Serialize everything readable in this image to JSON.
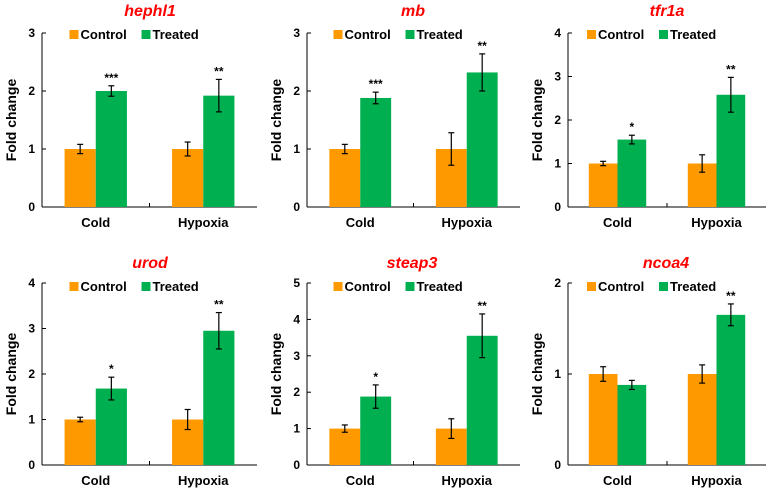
{
  "colors": {
    "control": "#ff9900",
    "treated": "#00b050",
    "title": "#ff0000",
    "axis": "#000000"
  },
  "chart_data": [
    {
      "type": "bar",
      "title": "hephl1",
      "ylabel": "Fold change",
      "ylim": [
        0,
        3
      ],
      "yticks": [
        "0",
        "1",
        "2",
        "3"
      ],
      "categories": [
        "Cold",
        "Hypoxia"
      ],
      "legend": "top",
      "series": [
        {
          "name": "Control",
          "values": [
            1.0,
            1.0
          ],
          "errors": [
            0.08,
            0.12
          ]
        },
        {
          "name": "Treated",
          "values": [
            2.0,
            1.92
          ],
          "errors": [
            0.09,
            0.28
          ]
        }
      ],
      "annotations": [
        "***",
        "**"
      ]
    },
    {
      "type": "bar",
      "title": "mb",
      "ylabel": "Fold change",
      "ylim": [
        0,
        3
      ],
      "yticks": [
        "0",
        "1",
        "2",
        "3"
      ],
      "categories": [
        "Cold",
        "Hypoxia"
      ],
      "legend": "top",
      "series": [
        {
          "name": "Control",
          "values": [
            1.0,
            1.0
          ],
          "errors": [
            0.08,
            0.28
          ]
        },
        {
          "name": "Treated",
          "values": [
            1.88,
            2.32
          ],
          "errors": [
            0.1,
            0.32
          ]
        }
      ],
      "annotations": [
        "***",
        "**"
      ]
    },
    {
      "type": "bar",
      "title": "tfr1a",
      "ylabel": "Fold change",
      "ylim": [
        0,
        4
      ],
      "yticks": [
        "0",
        "1",
        "2",
        "3",
        "4"
      ],
      "categories": [
        "Cold",
        "Hypoxia"
      ],
      "legend": "top",
      "series": [
        {
          "name": "Control",
          "values": [
            1.0,
            1.0
          ],
          "errors": [
            0.05,
            0.2
          ]
        },
        {
          "name": "Treated",
          "values": [
            1.55,
            2.58
          ],
          "errors": [
            0.1,
            0.4
          ]
        }
      ],
      "annotations": [
        "*",
        "**"
      ]
    },
    {
      "type": "bar",
      "title": "urod",
      "ylabel": "Fold change",
      "ylim": [
        0,
        4
      ],
      "yticks": [
        "0",
        "1",
        "2",
        "3",
        "4"
      ],
      "categories": [
        "Cold",
        "Hypoxia"
      ],
      "legend": "top",
      "series": [
        {
          "name": "Control",
          "values": [
            1.0,
            1.0
          ],
          "errors": [
            0.05,
            0.22
          ]
        },
        {
          "name": "Treated",
          "values": [
            1.68,
            2.95
          ],
          "errors": [
            0.25,
            0.4
          ]
        }
      ],
      "annotations": [
        "*",
        "**"
      ]
    },
    {
      "type": "bar",
      "title": "steap3",
      "ylabel": "Fold change",
      "ylim": [
        0,
        5
      ],
      "yticks": [
        "0",
        "1",
        "2",
        "3",
        "4",
        "5"
      ],
      "categories": [
        "Cold",
        "Hypoxia"
      ],
      "legend": "top",
      "series": [
        {
          "name": "Control",
          "values": [
            1.0,
            1.0
          ],
          "errors": [
            0.1,
            0.27
          ]
        },
        {
          "name": "Treated",
          "values": [
            1.88,
            3.55
          ],
          "errors": [
            0.32,
            0.6
          ]
        }
      ],
      "annotations": [
        "*",
        "**"
      ]
    },
    {
      "type": "bar",
      "title": "ncoa4",
      "ylabel": "Fold change",
      "ylim": [
        0,
        2
      ],
      "yticks": [
        "0",
        "1",
        "2"
      ],
      "categories": [
        "Cold",
        "Hypoxia"
      ],
      "legend": "top",
      "series": [
        {
          "name": "Control",
          "values": [
            1.0,
            1.0
          ],
          "errors": [
            0.08,
            0.1
          ]
        },
        {
          "name": "Treated",
          "values": [
            0.88,
            1.65
          ],
          "errors": [
            0.05,
            0.12
          ]
        }
      ],
      "annotations": [
        "",
        "**"
      ]
    }
  ]
}
